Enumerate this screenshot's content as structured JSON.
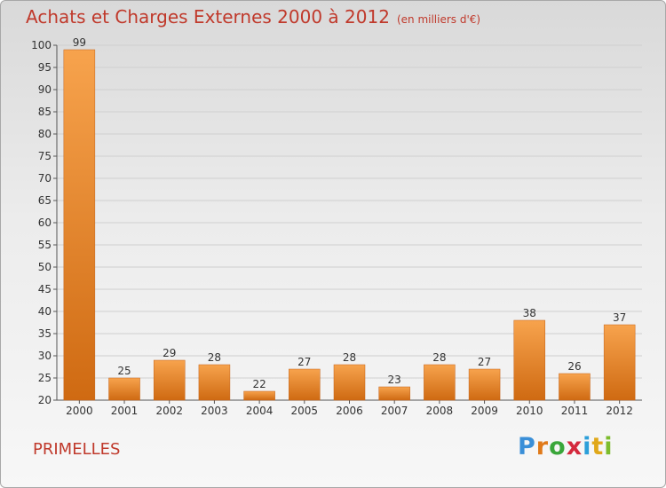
{
  "title": "Achats et Charges Externes 2000 à 2012",
  "subtitle": "(en milliers d'€)",
  "commune": "PRIMELLES",
  "logo": {
    "letters": [
      "P",
      "r",
      "o",
      "x",
      "i",
      "t",
      "i"
    ],
    "colors": [
      "#3a8fd8",
      "#e07a1a",
      "#3aa63a",
      "#d4283c",
      "#2c9fd9",
      "#e0a81a",
      "#7cbc2c"
    ]
  },
  "colors": {
    "bar_light": "#f7a34d",
    "bar_dark": "#cf6a12",
    "title": "#c0392b"
  },
  "chart_data": {
    "type": "bar",
    "categories": [
      "2000",
      "2001",
      "2002",
      "2003",
      "2004",
      "2005",
      "2006",
      "2007",
      "2008",
      "2009",
      "2010",
      "2011",
      "2012"
    ],
    "values": [
      99,
      25,
      29,
      28,
      22,
      27,
      28,
      23,
      28,
      27,
      38,
      26,
      37
    ],
    "ylim": [
      20,
      100
    ],
    "yticks": [
      20,
      25,
      30,
      35,
      40,
      45,
      50,
      55,
      60,
      65,
      70,
      75,
      80,
      85,
      90,
      95,
      100
    ],
    "grid": true
  }
}
